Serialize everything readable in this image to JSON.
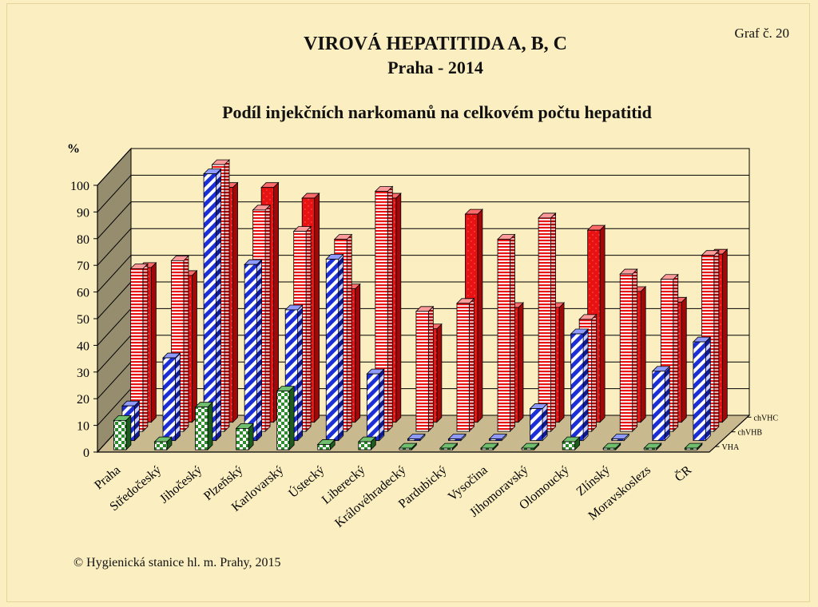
{
  "graf_label": "Graf č. 20",
  "title": "VIROVÁ HEPATITIDA A, B, C",
  "subtitle": "Praha - 2014",
  "chart_title": "Podíl injekčních narkomanů na celkovém počtu hepatitid",
  "copyright": "© Hygienická stanice hl. m. Prahy, 2015",
  "colors": {
    "vha": "#2e8b2e",
    "chvhb": "#1c2fd6",
    "chvhc": "#e81212",
    "wall": "#fbeec0",
    "floor": "#c9b98f",
    "sidewall": "#958d6d"
  },
  "chart_data": {
    "type": "bar",
    "style": "3d-grouped",
    "ylabel": "%",
    "ylim": [
      0,
      100
    ],
    "yticks": [
      0,
      10,
      20,
      30,
      40,
      50,
      60,
      70,
      80,
      90,
      100
    ],
    "grid": true,
    "categories": [
      "Praha",
      "Středočeský",
      "Jihočeský",
      "Plzeňský",
      "Karlovarský",
      "Ústecký",
      "Liberecký",
      "Královéhradecký",
      "Pardubický",
      "Vysočina",
      "Jihomoravský",
      "Olomoucký",
      "Zlínský",
      "Moravskoslezs",
      "ČR"
    ],
    "series": [
      {
        "name": "VHA",
        "values": [
          11,
          3,
          16,
          8,
          22,
          2,
          3,
          0,
          0,
          0,
          0,
          3,
          0,
          0,
          0
        ]
      },
      {
        "name": "chVHB",
        "values": [
          13,
          31,
          100,
          66,
          49,
          68,
          25,
          0,
          0,
          0,
          12,
          40,
          0,
          26,
          37
        ]
      },
      {
        "name": "chVHC",
        "values": [
          61,
          64,
          100,
          83,
          75,
          72,
          90,
          45,
          48,
          72,
          80,
          42,
          59,
          57,
          66
        ]
      },
      {
        "name": "chVHC",
        "values": [
          58,
          55,
          88,
          88,
          84,
          50,
          84,
          35,
          78,
          43,
          43,
          72,
          49,
          45,
          63
        ]
      }
    ]
  }
}
